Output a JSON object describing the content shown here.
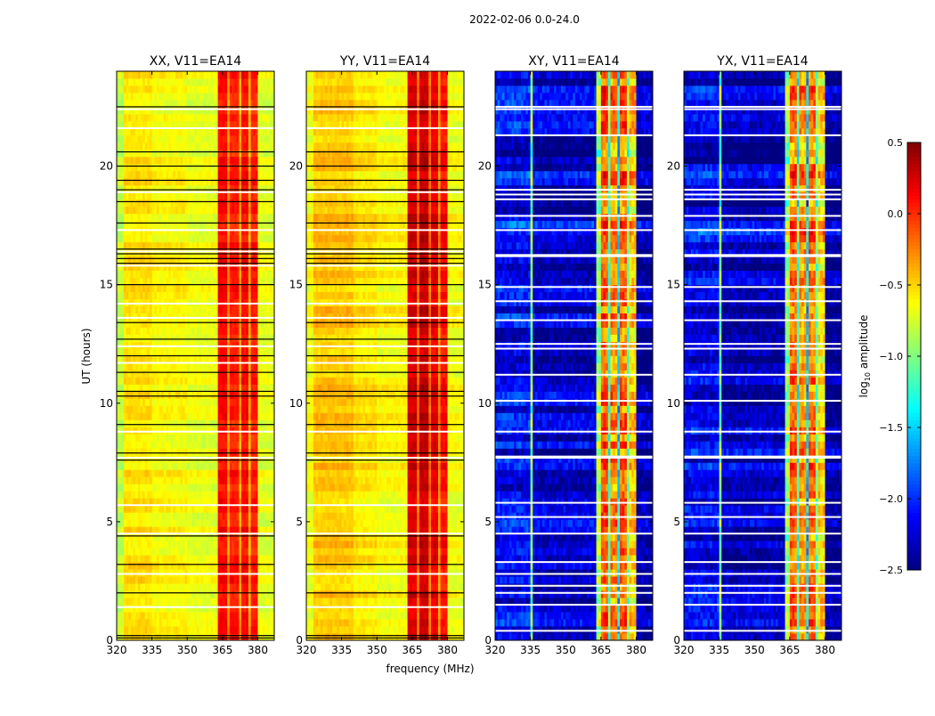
{
  "chart_data": {
    "type": "heatmap",
    "title": "2022-02-06 0.0-24.0",
    "xlabel": "frequency (MHz)",
    "ylabel": "UT (hours)",
    "xlim": [
      320,
      387
    ],
    "ylim": [
      0,
      24
    ],
    "xticks": [
      "320",
      "335",
      "350",
      "365",
      "380"
    ],
    "yticks": [
      "0",
      "5",
      "10",
      "15",
      "20"
    ],
    "colorbar": {
      "label_main": "log",
      "label_sub": "10",
      "label_rest": " amplitude",
      "range": [
        -2.5,
        0.5
      ],
      "colormap": "jet",
      "ticks": [
        "0.5",
        "0.0",
        "−0.5",
        "−1.0",
        "−1.5",
        "−2.0",
        "−2.5"
      ],
      "tick_values": [
        0.5,
        0.0,
        -0.5,
        -1.0,
        -1.5,
        -2.0,
        -2.5
      ]
    },
    "panels": [
      {
        "title": "XX, V11=EA14",
        "background": -0.62,
        "segments": [
          [
            320,
            323,
            -0.8
          ],
          [
            323,
            335,
            -0.55
          ],
          [
            335,
            350,
            -0.62
          ],
          [
            350,
            363,
            -0.68
          ],
          [
            363,
            367,
            0.12
          ],
          [
            367,
            368,
            -0.3
          ],
          [
            368,
            372,
            0.05
          ],
          [
            372,
            373,
            -0.35
          ],
          [
            373,
            376,
            0.1
          ],
          [
            376,
            377,
            -0.4
          ],
          [
            377,
            380,
            0.05
          ],
          [
            380,
            387,
            -0.7
          ]
        ],
        "black_lines_h": [
          0.1,
          0.2,
          2.0,
          3.2,
          4.4,
          7.6,
          7.9,
          9.1,
          10.3,
          10.5,
          11.3,
          12.0,
          12.7,
          13.4,
          15.0,
          15.9,
          16.1,
          16.3,
          16.5,
          17.6,
          18.5,
          19.0,
          19.4,
          20.0,
          20.6,
          22.5
        ],
        "white_lines_h": [
          1.4,
          2.8,
          4.5,
          5.7,
          7.7,
          8.8,
          11.7,
          12.4,
          13.6,
          14.2,
          15.8,
          16.4,
          17.3,
          18.9,
          21.6,
          22.4
        ]
      },
      {
        "title": "YY, V11=EA14",
        "background": -0.55,
        "segments": [
          [
            320,
            323,
            -0.65
          ],
          [
            323,
            340,
            -0.45
          ],
          [
            340,
            350,
            -0.55
          ],
          [
            350,
            363,
            -0.62
          ],
          [
            363,
            367,
            0.25
          ],
          [
            367,
            368,
            -0.2
          ],
          [
            368,
            372,
            0.3
          ],
          [
            372,
            373,
            -0.2
          ],
          [
            373,
            376,
            0.2
          ],
          [
            376,
            377,
            -0.3
          ],
          [
            377,
            380,
            0.1
          ],
          [
            380,
            387,
            -0.65
          ]
        ],
        "black_lines_h": [
          0.1,
          0.2,
          2.0,
          3.2,
          4.4,
          7.6,
          7.9,
          9.1,
          10.3,
          10.5,
          11.3,
          12.0,
          12.7,
          13.4,
          15.0,
          15.9,
          16.1,
          16.3,
          16.5,
          17.6,
          18.5,
          19.0,
          19.4,
          20.0,
          20.6,
          22.5
        ],
        "white_lines_h": [
          1.4,
          2.8,
          4.5,
          5.7,
          7.7,
          8.8,
          11.7,
          12.4,
          13.6,
          14.2,
          15.8,
          16.4,
          17.3,
          18.9,
          21.6,
          22.4
        ]
      },
      {
        "title": "XY, V11=EA14",
        "background": -2.3,
        "segments": [
          [
            320,
            335,
            -2.15
          ],
          [
            335,
            336,
            -1.0
          ],
          [
            336,
            363,
            -2.3
          ],
          [
            363,
            365,
            -0.9
          ],
          [
            365,
            368,
            -0.15
          ],
          [
            368,
            369,
            -1.2
          ],
          [
            369,
            372,
            -0.3
          ],
          [
            372,
            373,
            -1.5
          ],
          [
            373,
            376,
            -0.2
          ],
          [
            376,
            377,
            -1.0
          ],
          [
            377,
            380,
            -0.5
          ],
          [
            380,
            387,
            -2.4
          ]
        ],
        "black_lines_h": [],
        "white_lines_h": [
          0.4,
          1.5,
          2.0,
          2.3,
          2.8,
          3.3,
          4.5,
          5.2,
          5.8,
          7.7,
          7.75,
          8.8,
          10.1,
          11.2,
          12.3,
          12.5,
          13.5,
          14.3,
          14.9,
          16.2,
          16.25,
          17.3,
          17.9,
          18.6,
          18.8,
          19.0,
          21.3,
          22.4,
          22.5
        ]
      },
      {
        "title": "YX, V11=EA14",
        "background": -2.3,
        "segments": [
          [
            320,
            335,
            -2.15
          ],
          [
            335,
            336,
            -1.0
          ],
          [
            336,
            363,
            -2.3
          ],
          [
            363,
            365,
            -0.9
          ],
          [
            365,
            368,
            -0.15
          ],
          [
            368,
            369,
            -1.2
          ],
          [
            369,
            372,
            -0.3
          ],
          [
            372,
            373,
            -1.5
          ],
          [
            373,
            376,
            -0.2
          ],
          [
            376,
            377,
            -1.0
          ],
          [
            377,
            380,
            -0.5
          ],
          [
            380,
            387,
            -2.4
          ]
        ],
        "black_lines_h": [],
        "white_lines_h": [
          0.4,
          1.5,
          2.0,
          2.3,
          2.8,
          3.3,
          4.5,
          5.2,
          5.8,
          7.7,
          7.75,
          8.8,
          10.1,
          11.2,
          12.3,
          12.5,
          13.5,
          14.3,
          14.9,
          16.2,
          16.25,
          17.3,
          17.9,
          18.6,
          18.8,
          19.0,
          21.3,
          22.4,
          22.5
        ]
      }
    ]
  }
}
